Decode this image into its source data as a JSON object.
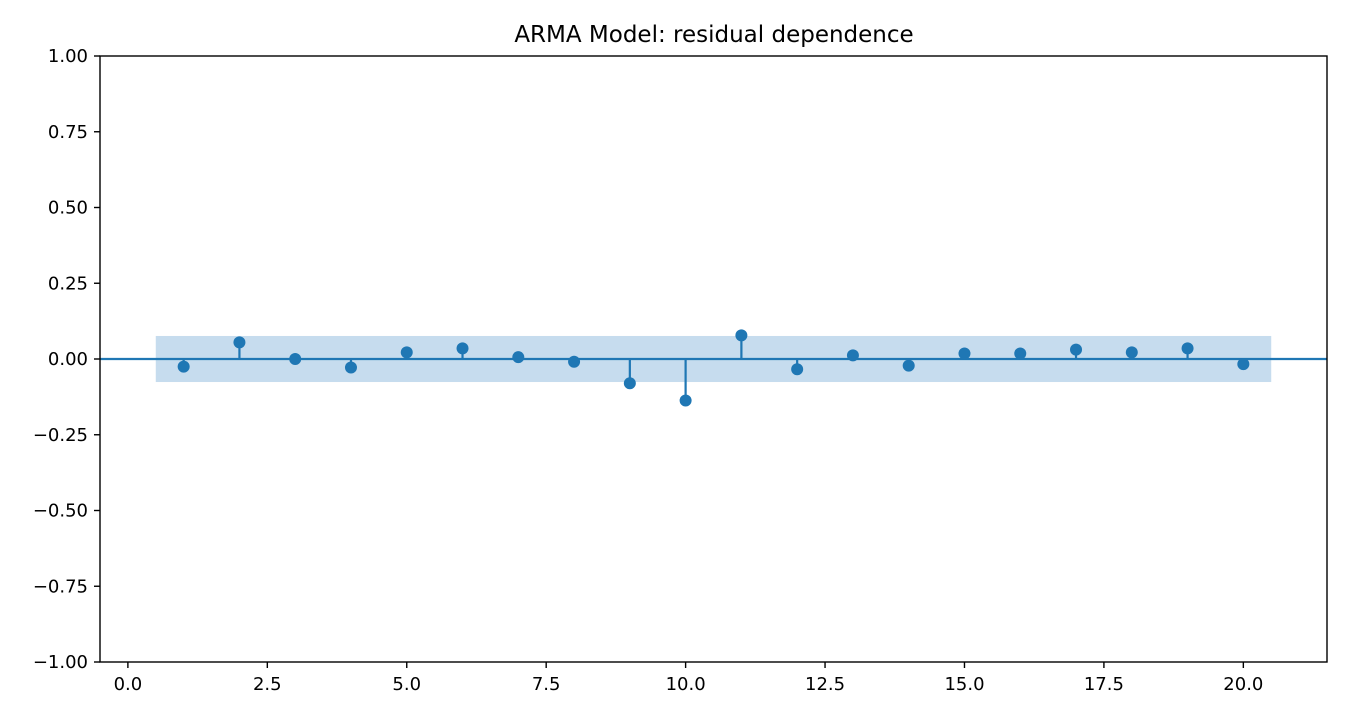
{
  "chart_data": {
    "type": "scatter",
    "subtype": "stem",
    "title": "ARMA Model: residual dependence",
    "xlabel": "",
    "ylabel": "",
    "xlim": [
      -0.5,
      21.5
    ],
    "ylim": [
      -1.0,
      1.0
    ],
    "x_ticks": [
      0.0,
      2.5,
      5.0,
      7.5,
      10.0,
      12.5,
      15.0,
      17.5,
      20.0
    ],
    "x_tick_labels": [
      "0.0",
      "2.5",
      "5.0",
      "7.5",
      "10.0",
      "12.5",
      "15.0",
      "17.5",
      "20.0"
    ],
    "y_ticks": [
      1.0,
      0.75,
      0.5,
      0.25,
      0.0,
      -0.25,
      -0.5,
      -0.75,
      -1.0
    ],
    "y_tick_labels": [
      "1.00",
      "0.75",
      "0.50",
      "0.25",
      "0.00",
      "−0.25",
      "−0.50",
      "−0.75",
      "−1.00"
    ],
    "grid": false,
    "colors": {
      "stem": "#1f77b4",
      "band": "#c6dcee",
      "axis": "#000000"
    },
    "confidence_band": {
      "x_start": 0.5,
      "x_end": 20.5,
      "upper": 0.076,
      "lower": -0.076
    },
    "x": [
      1,
      2,
      3,
      4,
      5,
      6,
      7,
      8,
      9,
      10,
      11,
      12,
      13,
      14,
      15,
      16,
      17,
      18,
      19,
      20
    ],
    "values": [
      -0.025,
      0.055,
      0.0,
      -0.028,
      0.022,
      0.035,
      0.006,
      -0.009,
      -0.08,
      -0.137,
      0.078,
      -0.034,
      0.012,
      -0.022,
      0.018,
      0.018,
      0.031,
      0.022,
      0.035,
      -0.017
    ]
  }
}
